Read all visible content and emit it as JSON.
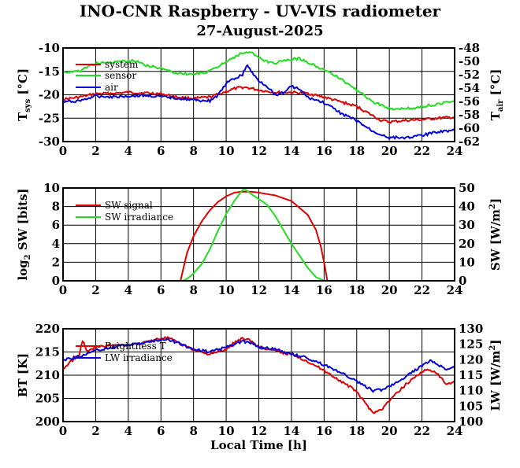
{
  "title": "INO-CNR Raspberry - UV-VIS radiometer",
  "subtitle": "27-August-2025",
  "colors": {
    "red": "#e00000",
    "green": "#22dd22",
    "blue": "#0000dd"
  },
  "chart_data": [
    {
      "type": "line",
      "xlabel": "",
      "ylabel": "T_sys [°C]",
      "ylabel_main": "T",
      "ylabel_sub": "sys",
      "ylabel_unit": " [°C]",
      "y2label": "T_air [°C]",
      "y2label_main": "T",
      "y2label_sub": "air",
      "y2label_unit": " [°C]",
      "xlim": [
        0,
        24
      ],
      "ylim": [
        -30,
        -10
      ],
      "y2lim": [
        -62,
        -48
      ],
      "xticks": [
        "0",
        "2",
        "4",
        "6",
        "8",
        "10",
        "12",
        "14",
        "16",
        "18",
        "20",
        "22",
        "24"
      ],
      "yticks": [
        "-30",
        "-25",
        "-20",
        "-15",
        "-10"
      ],
      "y2ticks": [
        "-62",
        "-60",
        "-58",
        "-56",
        "-54",
        "-52",
        "-50",
        "-48"
      ],
      "grid": true,
      "legend_position": "top-left",
      "series": [
        {
          "name": "system",
          "color": "red",
          "axis": "left",
          "x": [
            0,
            1,
            2,
            3,
            4,
            5,
            6,
            7,
            8,
            9,
            10,
            10.5,
            11,
            11.5,
            12,
            13,
            14,
            15,
            16,
            17,
            18,
            19,
            19.5,
            20,
            21,
            22,
            23,
            24
          ],
          "y": [
            -21,
            -20.5,
            -19.8,
            -19.7,
            -19.5,
            -19.6,
            -19.8,
            -20.5,
            -20.8,
            -20.5,
            -19.3,
            -18.7,
            -18.4,
            -18.6,
            -19,
            -19.5,
            -19.5,
            -19.7,
            -20.5,
            -21.5,
            -22.5,
            -24.5,
            -25.5,
            -25.8,
            -25.5,
            -25.3,
            -25,
            -24.8
          ]
        },
        {
          "name": "sensor",
          "color": "green",
          "axis": "left",
          "x": [
            0,
            0.5,
            1,
            1.5,
            2,
            3,
            4,
            4.5,
            5,
            6,
            7,
            8,
            9,
            9.5,
            10,
            10.5,
            11,
            11.5,
            12,
            12.5,
            13,
            13.5,
            14,
            14.5,
            15,
            16,
            17,
            18,
            19,
            20,
            21,
            22,
            23,
            24
          ],
          "y": [
            -15,
            -15.2,
            -15,
            -14,
            -13.3,
            -13.1,
            -12.8,
            -12.7,
            -13.6,
            -14.4,
            -15.4,
            -15.6,
            -15,
            -14,
            -12.8,
            -12,
            -11,
            -11,
            -12,
            -13,
            -13.2,
            -12.8,
            -12.4,
            -12.3,
            -13,
            -14.7,
            -16.5,
            -19,
            -21.5,
            -23,
            -23,
            -22.5,
            -22,
            -21.3
          ]
        },
        {
          "name": "air",
          "color": "blue",
          "axis": "right",
          "x": [
            0,
            1,
            2,
            3,
            4,
            5,
            6,
            7,
            8,
            9,
            9.5,
            10,
            10.5,
            11,
            11.3,
            11.6,
            12,
            12.5,
            13,
            13.5,
            14,
            14.5,
            15,
            16,
            17,
            18,
            19,
            20,
            21,
            22,
            23,
            24
          ],
          "y": [
            -56.1,
            -55.9,
            -55.2,
            -55.3,
            -55.2,
            -55.1,
            -55.3,
            -55.5,
            -55.8,
            -55.9,
            -55.1,
            -53.3,
            -52.6,
            -52,
            -50.5,
            -51.8,
            -52.9,
            -53.7,
            -55,
            -54.7,
            -53.7,
            -54.2,
            -55.4,
            -56.2,
            -57.7,
            -58.9,
            -60.5,
            -61.4,
            -61.4,
            -61.1,
            -60.5,
            -60.3
          ]
        }
      ]
    },
    {
      "type": "line",
      "xlabel": "",
      "ylabel": "log2 SW [bits]",
      "ylabel_main": "log",
      "ylabel_sub": "2",
      "ylabel_unit": " SW [bits]",
      "y2label": "SW [W/m²]",
      "y2label_main": "SW [W/m",
      "y2label_sup": "2",
      "y2label_unit": "]",
      "xlim": [
        0,
        24
      ],
      "ylim": [
        0,
        10
      ],
      "y2lim": [
        0,
        50
      ],
      "xticks": [
        "0",
        "2",
        "4",
        "6",
        "8",
        "10",
        "12",
        "14",
        "16",
        "18",
        "20",
        "22",
        "24"
      ],
      "yticks": [
        "0",
        "2",
        "4",
        "6",
        "8",
        "10"
      ],
      "y2ticks": [
        "0",
        "10",
        "20",
        "30",
        "40",
        "50"
      ],
      "grid": true,
      "legend_position": "top-left",
      "series": [
        {
          "name": "SW signal",
          "color": "red",
          "axis": "left",
          "x": [
            0,
            7.2,
            7.4,
            7.6,
            8,
            8.5,
            9,
            9.5,
            10,
            10.5,
            11,
            11.5,
            12,
            13,
            14,
            15,
            15.5,
            15.8,
            16,
            16.2,
            24
          ],
          "y": [
            0,
            0,
            1.5,
            3,
            4.8,
            6.4,
            7.6,
            8.5,
            9.1,
            9.5,
            9.6,
            9.6,
            9.5,
            9.2,
            8.6,
            7.1,
            5.5,
            3.7,
            2.0,
            0,
            0
          ]
        },
        {
          "name": "SW irradiance",
          "color": "green",
          "axis": "right",
          "x": [
            0,
            7.3,
            7.6,
            8,
            8.5,
            9,
            9.5,
            10,
            10.5,
            11,
            11.2,
            11.5,
            12,
            12.5,
            13,
            14,
            15,
            15.5,
            16,
            24
          ],
          "y": [
            0,
            0,
            1,
            4,
            9,
            17,
            27,
            36,
            43,
            49,
            49,
            47,
            44,
            41,
            35,
            20,
            7,
            2,
            0,
            0
          ]
        }
      ]
    },
    {
      "type": "line",
      "xlabel": "Local Time [h]",
      "ylabel": "BT [K]",
      "y2label": "LW [W/m²]",
      "y2label_main": "LW [W/m",
      "y2label_sup": "2",
      "y2label_unit": "]",
      "xlim": [
        0,
        24
      ],
      "ylim": [
        200,
        220
      ],
      "y2lim": [
        100,
        130
      ],
      "xticks": [
        "0",
        "2",
        "4",
        "6",
        "8",
        "10",
        "12",
        "14",
        "16",
        "18",
        "20",
        "22",
        "24"
      ],
      "yticks": [
        "200",
        "205",
        "210",
        "215",
        "220"
      ],
      "y2ticks": [
        "100",
        "105",
        "110",
        "115",
        "120",
        "125",
        "130"
      ],
      "grid": true,
      "legend_position": "top-left",
      "series": [
        {
          "name": "Brightness T",
          "color": "red",
          "axis": "left",
          "x": [
            0,
            0.5,
            1,
            1.2,
            1.5,
            2,
            3,
            4,
            5,
            6,
            6.5,
            7,
            8,
            9,
            10,
            10.5,
            11,
            11.5,
            12,
            13,
            14,
            15,
            16,
            17,
            18,
            18.5,
            19,
            19.5,
            20,
            21,
            22,
            22.5,
            23,
            23.5,
            24
          ],
          "y": [
            211.3,
            213,
            214.5,
            217.5,
            215,
            216,
            216.5,
            216.5,
            217,
            218,
            218,
            217,
            215.5,
            214.5,
            215.5,
            217,
            218,
            217.5,
            216,
            215.2,
            214.5,
            213,
            211,
            208.8,
            206.5,
            204,
            202,
            202.5,
            204.5,
            208,
            210.8,
            211.2,
            210,
            208,
            208.5
          ]
        },
        {
          "name": "LW irradiance",
          "color": "blue",
          "axis": "right",
          "x": [
            0,
            1,
            2,
            3,
            4,
            5,
            6,
            6.5,
            7,
            8,
            9,
            10,
            11,
            11.5,
            12,
            13,
            14,
            15,
            16,
            17,
            18,
            18.5,
            19,
            19.5,
            20,
            21,
            22,
            22.5,
            23,
            23.5,
            24
          ],
          "y": [
            120,
            121,
            123,
            124,
            124.8,
            125.5,
            126.5,
            126.5,
            125.5,
            123.5,
            122.5,
            124,
            126,
            125.5,
            124,
            123.5,
            121.8,
            120.5,
            118.3,
            116,
            113,
            111.5,
            110,
            110.3,
            111.5,
            114.5,
            118,
            119.5,
            118.5,
            116.8,
            117.5
          ]
        }
      ]
    }
  ]
}
